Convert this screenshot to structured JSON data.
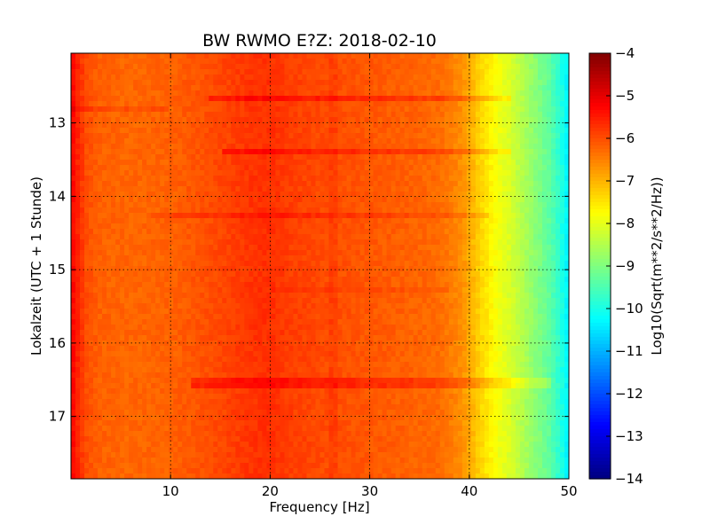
{
  "chart_data": {
    "type": "heatmap",
    "title": "BW RWMO E?Z: 2018-02-10",
    "xlabel": "Frequency [Hz]",
    "ylabel": "Lokalzeit (UTC + 1 Stunde)",
    "xlim": [
      0,
      50
    ],
    "ylim": [
      17.85,
      12.05
    ],
    "y_inverted": true,
    "x_ticks": [
      10,
      20,
      30,
      40,
      50
    ],
    "x_tick_labels": [
      "10",
      "20",
      "30",
      "40",
      "50"
    ],
    "y_ticks": [
      13,
      14,
      15,
      16,
      17
    ],
    "y_tick_labels": [
      "13",
      "14",
      "15",
      "16",
      "17"
    ],
    "grid": true,
    "colormap": "jet",
    "colorbar": {
      "label": "Log10(Sqrt(m**2/s**2/Hz))",
      "range": [
        -14,
        -4
      ],
      "ticks": [
        -4,
        -5,
        -6,
        -7,
        -8,
        -9,
        -10,
        -11,
        -12,
        -13,
        -14
      ],
      "tick_labels": [
        "−4",
        "−5",
        "−6",
        "−7",
        "−8",
        "−9",
        "−10",
        "−11",
        "−12",
        "−13",
        "−14"
      ]
    },
    "frequency_profile": {
      "frequency_hz": [
        0,
        0.5,
        1.5,
        3,
        6,
        10,
        14,
        18,
        20,
        22,
        26,
        30,
        34,
        37,
        39,
        40,
        41,
        42,
        43,
        44,
        45,
        46,
        47,
        48,
        49,
        50
      ],
      "value": [
        -5.2,
        -5.5,
        -6.0,
        -6.2,
        -6.25,
        -6.2,
        -6.0,
        -5.75,
        -5.7,
        -5.85,
        -6.0,
        -6.1,
        -6.2,
        -6.3,
        -6.6,
        -6.9,
        -7.3,
        -7.6,
        -7.9,
        -8.1,
        -8.4,
        -8.7,
        -9.0,
        -9.3,
        -9.8,
        -10.4
      ]
    },
    "bands": [
      {
        "time_h": 12.65,
        "from_hz": 14,
        "to_hz": 44,
        "strength": 1.0
      },
      {
        "time_h": 12.8,
        "from_hz": 0,
        "to_hz": 10,
        "strength": 0.5
      },
      {
        "time_h": 13.42,
        "from_hz": 15,
        "to_hz": 44,
        "strength": 0.9
      },
      {
        "time_h": 14.25,
        "from_hz": 8,
        "to_hz": 42,
        "strength": 0.6
      },
      {
        "time_h": 15.25,
        "from_hz": 20,
        "to_hz": 38,
        "strength": 0.3
      },
      {
        "time_h": 16.55,
        "from_hz": 12,
        "to_hz": 48,
        "strength": 1.0
      }
    ],
    "vertical_lines": [
      {
        "freq_hz": 26.3,
        "strength": 0.5
      }
    ]
  }
}
